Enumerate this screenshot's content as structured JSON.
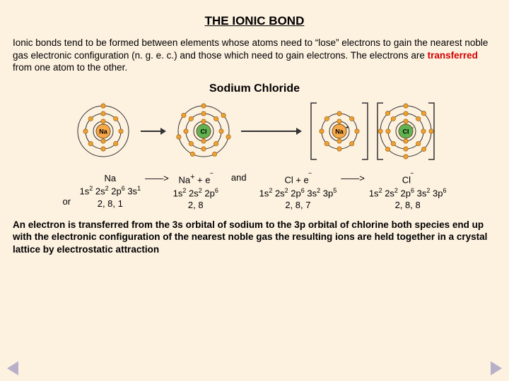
{
  "title": "THE IONIC BOND",
  "intro": {
    "pre": "Ionic bonds tend to be formed between elements whose atoms need to “lose” electrons to gain the nearest noble gas electronic configuration (n. g. e. c.) and those which need to gain electrons.  The electrons are ",
    "highlight": "transferred",
    "post": " from one atom to the other."
  },
  "subtitle": "Sodium Chloride",
  "atoms": {
    "na": {
      "label": "Na",
      "nucleus_fill": "#f7a94a",
      "shells": [
        2,
        8,
        1
      ],
      "radii": [
        14,
        25,
        36
      ]
    },
    "cl": {
      "label": "Cl",
      "nucleus_fill": "#5fb351",
      "shells": [
        2,
        8,
        7
      ],
      "radii": [
        14,
        25,
        36
      ]
    },
    "nap": {
      "label": "Na",
      "sup": "+",
      "nucleus_fill": "#f7a94a",
      "shells": [
        2,
        8
      ],
      "radii": [
        14,
        25
      ],
      "bracket": true
    },
    "clm": {
      "label": "Cl",
      "sup": "-",
      "nucleus_fill": "#5fb351",
      "shells": [
        2,
        8,
        8
      ],
      "radii": [
        14,
        25,
        36
      ],
      "bracket": true
    }
  },
  "colors": {
    "electron": "#f0a030",
    "shell_stroke": "#333333",
    "nucleus_stroke": "#705020",
    "arrow": "#333333",
    "bracket": "#333333"
  },
  "arrows": {
    "short": "——>",
    "long_len": 90
  },
  "equations": {
    "or": "or",
    "and": "and",
    "na_left": {
      "l1": "Na",
      "l2_parts": [
        "1s",
        "2",
        " 2s",
        "2",
        " 2p",
        "6",
        " 3s",
        "1"
      ],
      "l3": "2, 8, 1"
    },
    "na_right": {
      "l1_html": "Na<sup>+</sup>  +  e<sup>&#8254;</sup>",
      "l2_parts": [
        "1s",
        "2",
        " 2s",
        "2",
        " 2p",
        "6"
      ],
      "l3": "2, 8"
    },
    "cl_left": {
      "l1_html": "Cl   +   e<sup>&#8254;</sup>",
      "l2_parts": [
        "1s",
        "2",
        " 2s",
        "2",
        " 2p",
        "6",
        " 3s",
        "2",
        " 3p",
        "5"
      ],
      "l3": "2, 8, 7"
    },
    "cl_right": {
      "l1_html": "Cl<sup>&#8254;</sup>",
      "l2_parts": [
        "1s",
        "2",
        " 2s",
        "2",
        " 2p",
        "6",
        " 3s",
        "2",
        " 3p",
        "6"
      ],
      "l3": "2, 8, 8"
    }
  },
  "conclusion": "An electron is transferred from the 3s orbital of sodium to the 3p orbital of chlorine both species end up with the electronic configuration of the nearest noble gas the resulting ions are held together in a crystal lattice by electrostatic attraction"
}
